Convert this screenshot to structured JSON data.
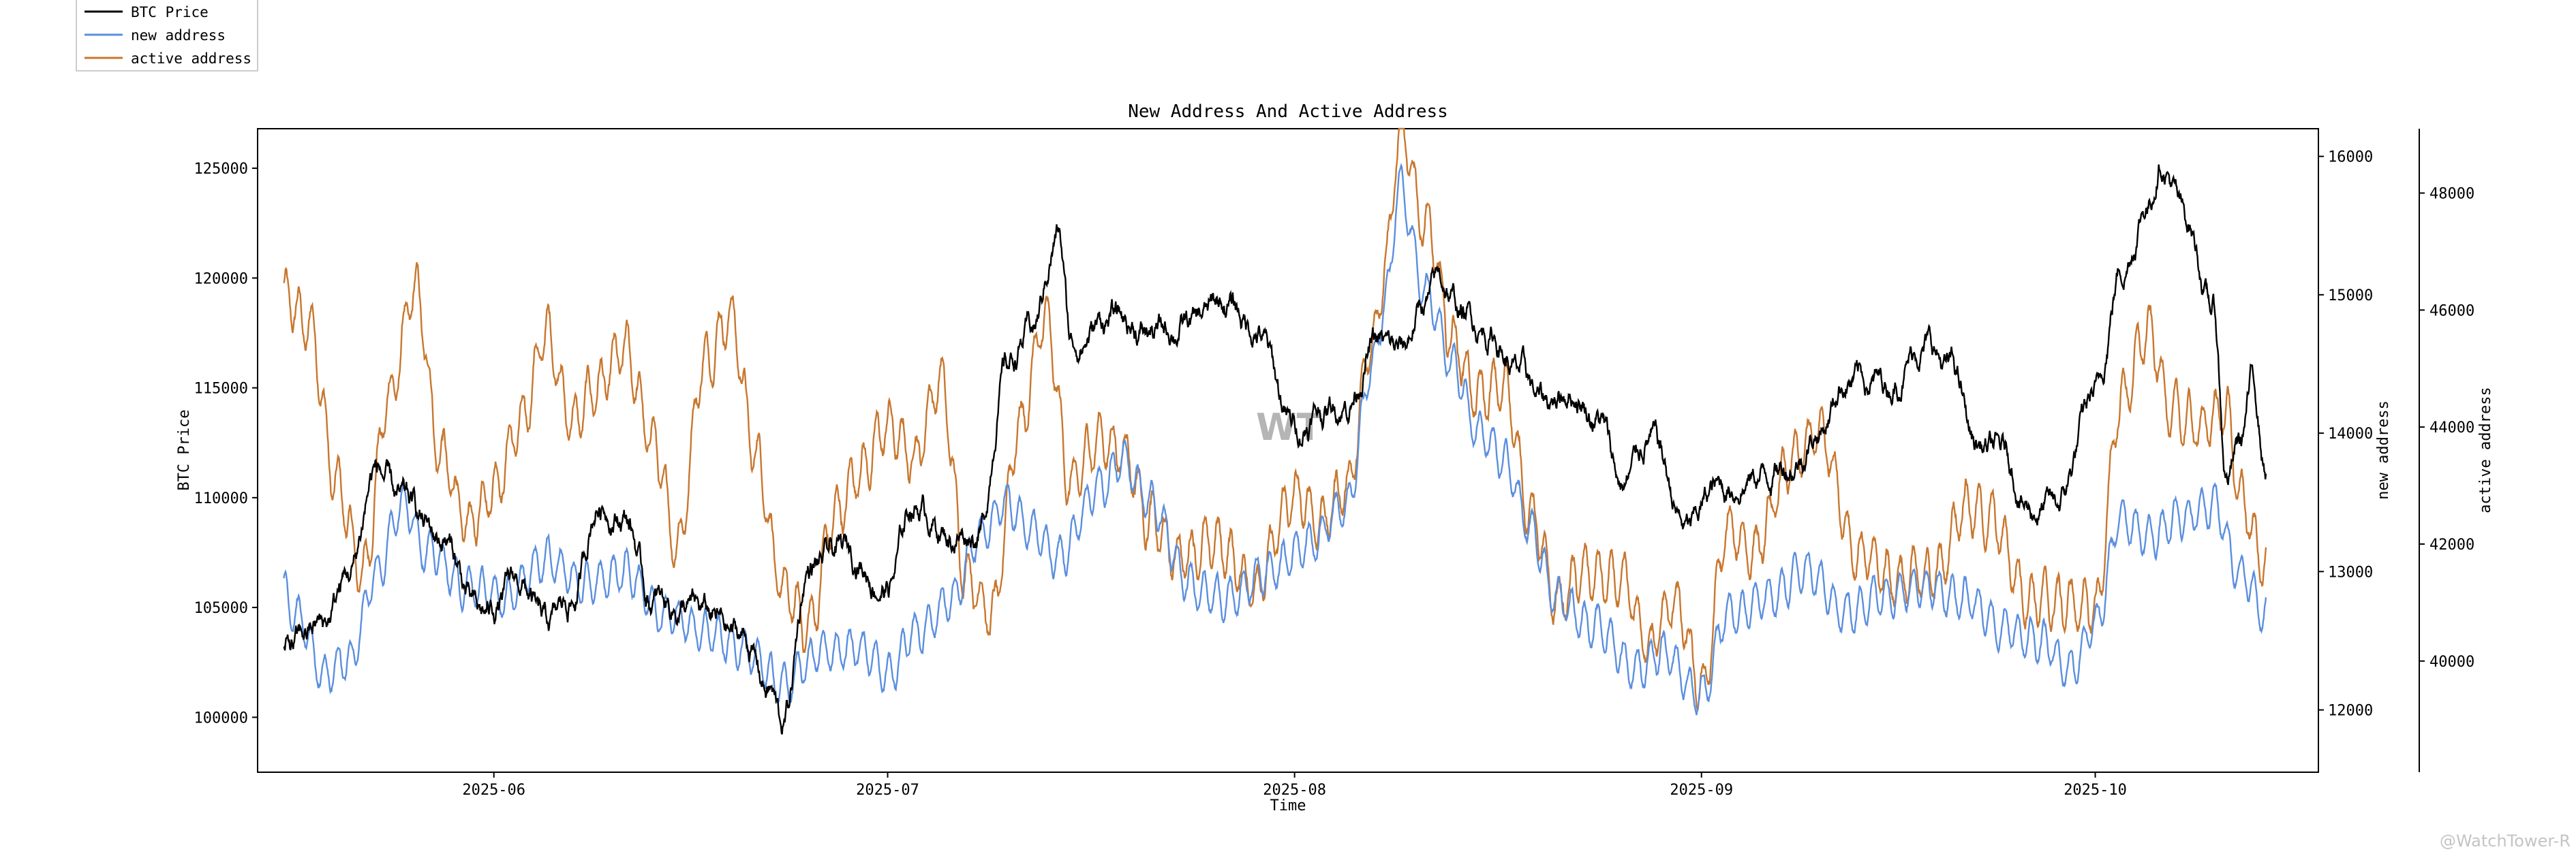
{
  "chart_data": {
    "type": "line",
    "title": "New Address And Active Address",
    "xlabel": "Time",
    "x_ticks": [
      "2025-06",
      "2025-07",
      "2025-08",
      "2025-09",
      "2025-10"
    ],
    "x_range": [
      "2025-05-14",
      "2025-10-18"
    ],
    "legend_position": "top-left",
    "colors": {
      "btc": "#000000",
      "new": "#5b8fde",
      "active": "#c8772e"
    },
    "axes": [
      {
        "id": "btc",
        "label": "BTC Price",
        "side": "left",
        "ylim": [
          97500,
          126800
        ],
        "ticks": [
          "100000",
          "105000",
          "110000",
          "115000",
          "120000",
          "125000"
        ]
      },
      {
        "id": "new",
        "label": "new address",
        "side": "right",
        "ylim": [
          11550,
          16200
        ],
        "ticks": [
          "12000",
          "13000",
          "14000",
          "15000",
          "16000"
        ]
      },
      {
        "id": "active",
        "label": "active address",
        "side": "right-outer",
        "ylim": [
          38100,
          49100
        ],
        "ticks": [
          "40000",
          "42000",
          "44000",
          "46000",
          "48000"
        ]
      }
    ],
    "series": [
      {
        "name": "BTC Price",
        "axis": "btc",
        "start": "2025-05-16",
        "end": "2025-10-14",
        "keypoints": [
          [
            "2025-05-16",
            103000
          ],
          [
            "2025-05-19",
            104200
          ],
          [
            "2025-05-21",
            106500
          ],
          [
            "2025-05-23",
            111300
          ],
          [
            "2025-05-25",
            109600
          ],
          [
            "2025-05-28",
            108200
          ],
          [
            "2025-05-31",
            104500
          ],
          [
            "2025-06-03",
            106100
          ],
          [
            "2025-06-05",
            104000
          ],
          [
            "2025-06-07",
            105300
          ],
          [
            "2025-06-09",
            109800
          ],
          [
            "2025-06-11",
            109300
          ],
          [
            "2025-06-13",
            105300
          ],
          [
            "2025-06-15",
            105100
          ],
          [
            "2025-06-17",
            104600
          ],
          [
            "2025-06-20",
            103600
          ],
          [
            "2025-06-22",
            101300
          ],
          [
            "2025-06-23",
            99600
          ],
          [
            "2025-06-25",
            106800
          ],
          [
            "2025-06-28",
            107500
          ],
          [
            "2025-07-01",
            106000
          ],
          [
            "2025-07-03",
            109800
          ],
          [
            "2025-07-06",
            108300
          ],
          [
            "2025-07-08",
            108600
          ],
          [
            "2025-07-10",
            116000
          ],
          [
            "2025-07-12",
            117600
          ],
          [
            "2025-07-14",
            122000
          ],
          [
            "2025-07-15",
            117000
          ],
          [
            "2025-07-18",
            118200
          ],
          [
            "2025-07-21",
            117500
          ],
          [
            "2025-07-24",
            117900
          ],
          [
            "2025-07-27",
            118800
          ],
          [
            "2025-07-29",
            117700
          ],
          [
            "2025-08-01",
            113200
          ],
          [
            "2025-08-03",
            114000
          ],
          [
            "2025-08-05",
            114400
          ],
          [
            "2025-08-07",
            117000
          ],
          [
            "2025-08-09",
            116500
          ],
          [
            "2025-08-11",
            118900
          ],
          [
            "2025-08-12",
            119800
          ],
          [
            "2025-08-14",
            118300
          ],
          [
            "2025-08-16",
            117500
          ],
          [
            "2025-08-18",
            115700
          ],
          [
            "2025-08-20",
            114300
          ],
          [
            "2025-08-22",
            115000
          ],
          [
            "2025-08-24",
            113800
          ],
          [
            "2025-08-26",
            110600
          ],
          [
            "2025-08-28",
            112800
          ],
          [
            "2025-08-31",
            108500
          ],
          [
            "2025-09-02",
            110300
          ],
          [
            "2025-09-05",
            111000
          ],
          [
            "2025-09-08",
            111700
          ],
          [
            "2025-09-10",
            113200
          ],
          [
            "2025-09-12",
            115500
          ],
          [
            "2025-09-15",
            115200
          ],
          [
            "2025-09-18",
            117000
          ],
          [
            "2025-09-20",
            115800
          ],
          [
            "2025-09-22",
            112400
          ],
          [
            "2025-09-24",
            111900
          ],
          [
            "2025-09-26",
            109600
          ],
          [
            "2025-09-28",
            109500
          ],
          [
            "2025-10-01",
            114500
          ],
          [
            "2025-10-03",
            120500
          ],
          [
            "2025-10-05",
            123500
          ],
          [
            "2025-10-06",
            125600
          ],
          [
            "2025-10-08",
            122500
          ],
          [
            "2025-10-10",
            118500
          ],
          [
            "2025-10-11",
            111000
          ],
          [
            "2025-10-12",
            112500
          ],
          [
            "2025-10-13",
            115200
          ],
          [
            "2025-10-14",
            111500
          ]
        ]
      },
      {
        "name": "new address",
        "axis": "new",
        "start": "2025-05-16",
        "end": "2025-10-14",
        "keypoints": [
          [
            "2025-05-16",
            12840
          ],
          [
            "2025-05-17",
            12670
          ],
          [
            "2025-05-19",
            12270
          ],
          [
            "2025-05-21",
            12360
          ],
          [
            "2025-05-23",
            12970
          ],
          [
            "2025-05-25",
            13500
          ],
          [
            "2025-05-27",
            13150
          ],
          [
            "2025-05-30",
            12880
          ],
          [
            "2025-06-02",
            12820
          ],
          [
            "2025-06-05",
            13100
          ],
          [
            "2025-06-08",
            12900
          ],
          [
            "2025-06-11",
            13000
          ],
          [
            "2025-06-14",
            12700
          ],
          [
            "2025-06-17",
            12580
          ],
          [
            "2025-06-20",
            12440
          ],
          [
            "2025-06-23",
            12180
          ],
          [
            "2025-06-26",
            12420
          ],
          [
            "2025-06-29",
            12450
          ],
          [
            "2025-07-01",
            12250
          ],
          [
            "2025-07-03",
            12550
          ],
          [
            "2025-07-06",
            12800
          ],
          [
            "2025-07-08",
            13250
          ],
          [
            "2025-07-10",
            13500
          ],
          [
            "2025-07-12",
            13300
          ],
          [
            "2025-07-14",
            13100
          ],
          [
            "2025-07-17",
            13600
          ],
          [
            "2025-07-19",
            13800
          ],
          [
            "2025-07-21",
            13500
          ],
          [
            "2025-07-24",
            12900
          ],
          [
            "2025-07-27",
            12800
          ],
          [
            "2025-07-30",
            13000
          ],
          [
            "2025-08-02",
            13200
          ],
          [
            "2025-08-05",
            13500
          ],
          [
            "2025-08-07",
            14500
          ],
          [
            "2025-08-08",
            15000
          ],
          [
            "2025-08-09",
            15800
          ],
          [
            "2025-08-11",
            15000
          ],
          [
            "2025-08-13",
            14500
          ],
          [
            "2025-08-15",
            14000
          ],
          [
            "2025-08-17",
            13800
          ],
          [
            "2025-08-19",
            13300
          ],
          [
            "2025-08-21",
            12800
          ],
          [
            "2025-08-24",
            12600
          ],
          [
            "2025-08-27",
            12300
          ],
          [
            "2025-08-29",
            12400
          ],
          [
            "2025-09-01",
            12100
          ],
          [
            "2025-09-03",
            12700
          ],
          [
            "2025-09-06",
            12800
          ],
          [
            "2025-09-09",
            13000
          ],
          [
            "2025-09-12",
            12700
          ],
          [
            "2025-09-15",
            12850
          ],
          [
            "2025-09-18",
            12900
          ],
          [
            "2025-09-21",
            12800
          ],
          [
            "2025-09-24",
            12600
          ],
          [
            "2025-09-27",
            12500
          ],
          [
            "2025-09-29",
            12300
          ],
          [
            "2025-10-01",
            12600
          ],
          [
            "2025-10-03",
            13400
          ],
          [
            "2025-10-05",
            13250
          ],
          [
            "2025-10-08",
            13400
          ],
          [
            "2025-10-10",
            13500
          ],
          [
            "2025-10-12",
            13000
          ],
          [
            "2025-10-14",
            12700
          ]
        ]
      },
      {
        "name": "active address",
        "axis": "active",
        "start": "2025-05-16",
        "end": "2025-10-14",
        "keypoints": [
          [
            "2025-05-16",
            46200
          ],
          [
            "2025-05-18",
            45700
          ],
          [
            "2025-05-20",
            43000
          ],
          [
            "2025-05-22",
            41500
          ],
          [
            "2025-05-24",
            44500
          ],
          [
            "2025-05-26",
            46300
          ],
          [
            "2025-05-28",
            43500
          ],
          [
            "2025-05-30",
            42300
          ],
          [
            "2025-06-01",
            43000
          ],
          [
            "2025-06-03",
            44000
          ],
          [
            "2025-06-05",
            45600
          ],
          [
            "2025-06-07",
            44100
          ],
          [
            "2025-06-09",
            44700
          ],
          [
            "2025-06-11",
            45300
          ],
          [
            "2025-06-13",
            43800
          ],
          [
            "2025-06-15",
            42000
          ],
          [
            "2025-06-17",
            45100
          ],
          [
            "2025-06-19",
            45900
          ],
          [
            "2025-06-21",
            43500
          ],
          [
            "2025-06-23",
            41200
          ],
          [
            "2025-06-25",
            40600
          ],
          [
            "2025-06-27",
            42500
          ],
          [
            "2025-06-29",
            43300
          ],
          [
            "2025-07-01",
            44000
          ],
          [
            "2025-07-03",
            43500
          ],
          [
            "2025-07-05",
            44800
          ],
          [
            "2025-07-07",
            41500
          ],
          [
            "2025-07-09",
            40800
          ],
          [
            "2025-07-11",
            44000
          ],
          [
            "2025-07-13",
            45800
          ],
          [
            "2025-07-15",
            43000
          ],
          [
            "2025-07-17",
            43800
          ],
          [
            "2025-07-19",
            43600
          ],
          [
            "2025-07-21",
            42400
          ],
          [
            "2025-07-23",
            41800
          ],
          [
            "2025-07-26",
            42000
          ],
          [
            "2025-07-29",
            41300
          ],
          [
            "2025-08-01",
            42800
          ],
          [
            "2025-08-03",
            42400
          ],
          [
            "2025-08-05",
            43000
          ],
          [
            "2025-08-07",
            45500
          ],
          [
            "2025-08-08",
            47000
          ],
          [
            "2025-08-09",
            49000
          ],
          [
            "2025-08-11",
            47500
          ],
          [
            "2025-08-13",
            45500
          ],
          [
            "2025-08-15",
            44500
          ],
          [
            "2025-08-17",
            44700
          ],
          [
            "2025-08-19",
            42500
          ],
          [
            "2025-08-21",
            41000
          ],
          [
            "2025-08-23",
            41500
          ],
          [
            "2025-08-26",
            41300
          ],
          [
            "2025-08-28",
            40300
          ],
          [
            "2025-08-30",
            41000
          ],
          [
            "2025-09-01",
            39500
          ],
          [
            "2025-09-03",
            42200
          ],
          [
            "2025-09-05",
            41900
          ],
          [
            "2025-09-08",
            43400
          ],
          [
            "2025-09-10",
            43900
          ],
          [
            "2025-09-13",
            41800
          ],
          [
            "2025-09-16",
            41400
          ],
          [
            "2025-09-19",
            41500
          ],
          [
            "2025-09-21",
            42700
          ],
          [
            "2025-09-23",
            42400
          ],
          [
            "2025-09-26",
            41100
          ],
          [
            "2025-09-28",
            41000
          ],
          [
            "2025-10-01",
            40900
          ],
          [
            "2025-10-03",
            44500
          ],
          [
            "2025-10-05",
            45600
          ],
          [
            "2025-10-07",
            44200
          ],
          [
            "2025-10-09",
            44000
          ],
          [
            "2025-10-11",
            44300
          ],
          [
            "2025-10-12",
            42800
          ],
          [
            "2025-10-14",
            41600
          ]
        ]
      }
    ],
    "annotations": {
      "watermark": "WT"
    }
  },
  "credit": "@WatchTower-R"
}
